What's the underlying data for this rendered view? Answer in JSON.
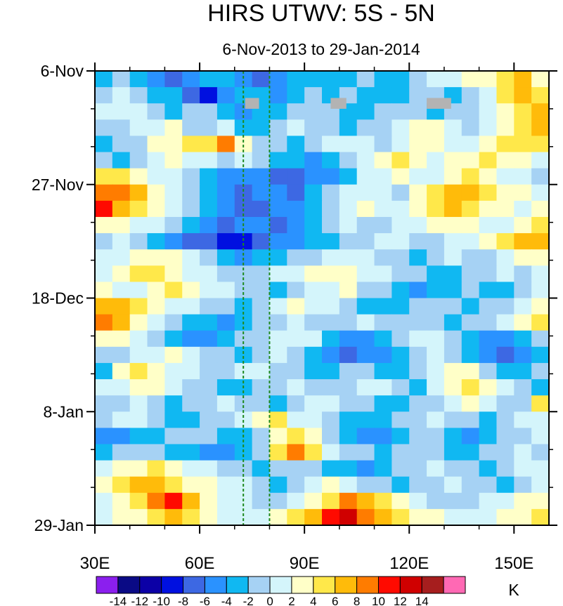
{
  "chart_data": {
    "type": "heatmap",
    "title": "HIRS UTWV: 5S - 5N",
    "subtitle": "6-Nov-2013 to 29-Jan-2014",
    "xlabel": "",
    "ylabel": "",
    "x_range": [
      30,
      160
    ],
    "x_ticks": [
      {
        "value": 30,
        "label": "30E"
      },
      {
        "value": 60,
        "label": "60E"
      },
      {
        "value": 90,
        "label": "90E"
      },
      {
        "value": 120,
        "label": "120E"
      },
      {
        "value": 150,
        "label": "150E"
      }
    ],
    "y_range_days_since_start": [
      0,
      84
    ],
    "y_ticks": [
      {
        "value": 0,
        "label": "6-Nov"
      },
      {
        "value": 21,
        "label": "27-Nov"
      },
      {
        "value": 42,
        "label": "18-Dec"
      },
      {
        "value": 63,
        "label": "8-Jan"
      },
      {
        "value": 84,
        "label": "29-Jan"
      }
    ],
    "reference_lines_longitude": [
      72.5,
      80
    ],
    "missing_data": [
      {
        "lon_start": 73,
        "lon_end": 77,
        "day_start": 5,
        "day_end": 7
      },
      {
        "lon_start": 97.5,
        "lon_end": 102,
        "day_start": 5,
        "day_end": 7
      },
      {
        "lon_start": 125,
        "lon_end": 132,
        "day_start": 5,
        "day_end": 7
      }
    ],
    "grid_columns": 26,
    "grid_rows": 28,
    "anomaly_grid": [
      [
        -3,
        -2,
        -4,
        -6,
        -7,
        -6,
        -4,
        -3,
        -5,
        -8,
        -6,
        -4,
        -3,
        -4,
        -3,
        -2,
        -4,
        -3,
        -1,
        0,
        1,
        2,
        3,
        5,
        6,
        3
      ],
      [
        -1,
        0,
        -2,
        -3,
        -4,
        -8,
        -10,
        -6,
        -3,
        -4,
        -5,
        -3,
        -2,
        -3,
        -2,
        -3,
        -4,
        -3,
        -2,
        -1,
        -3,
        -2,
        1,
        4,
        6,
        5
      ],
      [
        0,
        1,
        0,
        -2,
        -3,
        -2,
        -1,
        -3,
        -5,
        -4,
        -3,
        -2,
        -1,
        -2,
        -3,
        -4,
        -2,
        -1,
        -2,
        -3,
        -2,
        -1,
        0,
        2,
        4,
        7
      ],
      [
        -2,
        -1,
        0,
        1,
        2,
        -1,
        -2,
        0,
        -3,
        -4,
        -2,
        0,
        -1,
        -2,
        -3,
        -2,
        -1,
        0,
        2,
        3,
        1,
        -1,
        0,
        3,
        5,
        6
      ],
      [
        -3,
        -2,
        -1,
        2,
        3,
        4,
        5,
        8,
        3,
        -1,
        -2,
        -3,
        -1,
        0,
        1,
        0,
        -1,
        1,
        3,
        2,
        0,
        1,
        2,
        4,
        5,
        4
      ],
      [
        -1,
        -3,
        -2,
        0,
        2,
        1,
        0,
        -1,
        0,
        -2,
        -3,
        -4,
        -5,
        -3,
        -1,
        0,
        2,
        4,
        3,
        1,
        2,
        3,
        4,
        3,
        2,
        1
      ],
      [
        4,
        5,
        3,
        1,
        0,
        -2,
        -4,
        -6,
        -5,
        -6,
        -7,
        -8,
        -6,
        -5,
        -3,
        0,
        1,
        2,
        0,
        1,
        3,
        4,
        2,
        1,
        0,
        -1
      ],
      [
        8,
        9,
        6,
        3,
        1,
        -1,
        -3,
        -5,
        -7,
        -6,
        -5,
        -7,
        -4,
        -2,
        0,
        1,
        0,
        -1,
        2,
        5,
        6,
        7,
        5,
        3,
        2,
        1
      ],
      [
        10,
        7,
        4,
        2,
        0,
        -2,
        -4,
        -6,
        -8,
        -7,
        -6,
        -5,
        -3,
        -1,
        1,
        2,
        0,
        1,
        3,
        4,
        6,
        5,
        3,
        2,
        1,
        2
      ],
      [
        3,
        2,
        1,
        0,
        -2,
        -4,
        -6,
        -7,
        -5,
        -6,
        -8,
        -6,
        -4,
        -2,
        0,
        -1,
        -2,
        0,
        1,
        2,
        3,
        2,
        1,
        0,
        2,
        4
      ],
      [
        -1,
        0,
        -2,
        -4,
        -5,
        -7,
        -8,
        -9,
        -10,
        -8,
        -6,
        -5,
        -4,
        -3,
        -2,
        -1,
        0,
        1,
        -1,
        -2,
        0,
        1,
        2,
        4,
        6,
        7
      ],
      [
        0,
        1,
        2,
        3,
        2,
        0,
        -2,
        -3,
        -5,
        -4,
        -3,
        -2,
        -1,
        0,
        1,
        0,
        -1,
        -2,
        -3,
        -1,
        0,
        -2,
        -1,
        0,
        2,
        3
      ],
      [
        1,
        3,
        4,
        5,
        3,
        1,
        0,
        -1,
        -2,
        -1,
        0,
        1,
        2,
        3,
        2,
        1,
        0,
        -1,
        -2,
        -4,
        -3,
        -2,
        -1,
        0,
        -1,
        1
      ],
      [
        2,
        1,
        0,
        2,
        4,
        3,
        1,
        0,
        -1,
        -2,
        -3,
        -1,
        0,
        1,
        2,
        -1,
        -2,
        -3,
        -5,
        -4,
        -3,
        -2,
        -3,
        -4,
        -2,
        0
      ],
      [
        6,
        7,
        5,
        3,
        1,
        0,
        -1,
        -2,
        -3,
        -1,
        0,
        2,
        1,
        0,
        -2,
        -3,
        -4,
        -3,
        -2,
        -1,
        -2,
        -3,
        -2,
        -1,
        1,
        3
      ],
      [
        8,
        6,
        3,
        1,
        -1,
        -3,
        -4,
        -5,
        -3,
        -2,
        -1,
        0,
        -1,
        -2,
        -1,
        0,
        -1,
        -2,
        -1,
        -2,
        -3,
        -2,
        -1,
        0,
        2,
        5
      ],
      [
        3,
        2,
        1,
        -2,
        -3,
        -5,
        -6,
        -4,
        -2,
        -1,
        0,
        1,
        0,
        -3,
        -5,
        -6,
        -4,
        -2,
        0,
        1,
        -1,
        -3,
        -5,
        -6,
        -4,
        -1
      ],
      [
        -1,
        -2,
        0,
        1,
        2,
        0,
        -1,
        -2,
        -3,
        -1,
        0,
        -1,
        -3,
        -5,
        -7,
        -6,
        -5,
        -3,
        -1,
        0,
        -2,
        -4,
        -6,
        -7,
        -5,
        -3
      ],
      [
        -4,
        2,
        4,
        3,
        1,
        0,
        -2,
        -1,
        0,
        1,
        -1,
        -2,
        -3,
        -4,
        -2,
        -1,
        -3,
        -4,
        -2,
        1,
        3,
        2,
        -1,
        -3,
        -4,
        -2
      ],
      [
        0,
        1,
        2,
        3,
        1,
        -1,
        -2,
        -4,
        -3,
        -2,
        -1,
        0,
        -1,
        -2,
        -1,
        0,
        1,
        -1,
        -3,
        0,
        2,
        4,
        3,
        1,
        -1,
        -3
      ],
      [
        -2,
        -1,
        0,
        -1,
        -3,
        -2,
        -1,
        0,
        -1,
        -2,
        -3,
        -1,
        0,
        1,
        -1,
        -2,
        -3,
        -4,
        -2,
        -1,
        1,
        2,
        0,
        -1,
        -2,
        5
      ],
      [
        -1,
        0,
        1,
        -2,
        -3,
        -4,
        -2,
        -1,
        0,
        2,
        4,
        1,
        0,
        -2,
        -3,
        -4,
        -3,
        -2,
        -1,
        0,
        -1,
        -2,
        -3,
        -1,
        0,
        1
      ],
      [
        -5,
        -6,
        -4,
        -3,
        -2,
        -1,
        -2,
        -3,
        -4,
        -2,
        3,
        5,
        2,
        -1,
        -3,
        -5,
        -6,
        -4,
        -2,
        -1,
        -3,
        -5,
        -4,
        -2,
        -1,
        0
      ],
      [
        -3,
        -2,
        -1,
        -2,
        -3,
        -4,
        -5,
        -6,
        -4,
        -2,
        5,
        9,
        4,
        1,
        -1,
        -2,
        -3,
        -2,
        -1,
        -2,
        -3,
        -4,
        -2,
        -1,
        0,
        -1
      ],
      [
        1,
        2,
        3,
        4,
        2,
        1,
        0,
        -1,
        -2,
        -3,
        -2,
        -1,
        -2,
        -3,
        -4,
        -5,
        -3,
        -2,
        -1,
        0,
        -1,
        -2,
        -3,
        -1,
        0,
        1
      ],
      [
        2,
        4,
        6,
        7,
        5,
        3,
        2,
        1,
        0,
        -1,
        -3,
        -2,
        1,
        2,
        1,
        -1,
        -2,
        -3,
        -2,
        -1,
        0,
        -1,
        -2,
        -3,
        -1,
        0
      ],
      [
        1,
        3,
        5,
        8,
        10,
        6,
        3,
        1,
        0,
        -2,
        -1,
        1,
        3,
        5,
        8,
        6,
        4,
        2,
        0,
        -1,
        -2,
        -1,
        0,
        1,
        2,
        3
      ],
      [
        0,
        2,
        3,
        5,
        6,
        4,
        2,
        1,
        0,
        1,
        2,
        4,
        7,
        10,
        12,
        9,
        6,
        4,
        3,
        2,
        1,
        0,
        1,
        2,
        3,
        4
      ]
    ],
    "colorbar": {
      "ticks": [
        "-14",
        "-12",
        "-10",
        "-8",
        "-6",
        "-4",
        "-2",
        "0",
        "2",
        "4",
        "6",
        "8",
        "10",
        "12",
        "14"
      ],
      "levels": [
        -14,
        -12,
        -10,
        -8,
        -6,
        -4,
        -2,
        0,
        2,
        4,
        6,
        8,
        10,
        12,
        14
      ],
      "colors": [
        "#8b1fee",
        "#0a0a85",
        "#0c00a6",
        "#0010e0",
        "#3d68e3",
        "#2a92ff",
        "#10b8f2",
        "#a6d2f4",
        "#d4f5fb",
        "#ffffc8",
        "#ffe84a",
        "#ffbb0a",
        "#ff7c00",
        "#ff0a00",
        "#d00000",
        "#a61e1e",
        "#ff69b4"
      ],
      "unit": "K"
    }
  }
}
